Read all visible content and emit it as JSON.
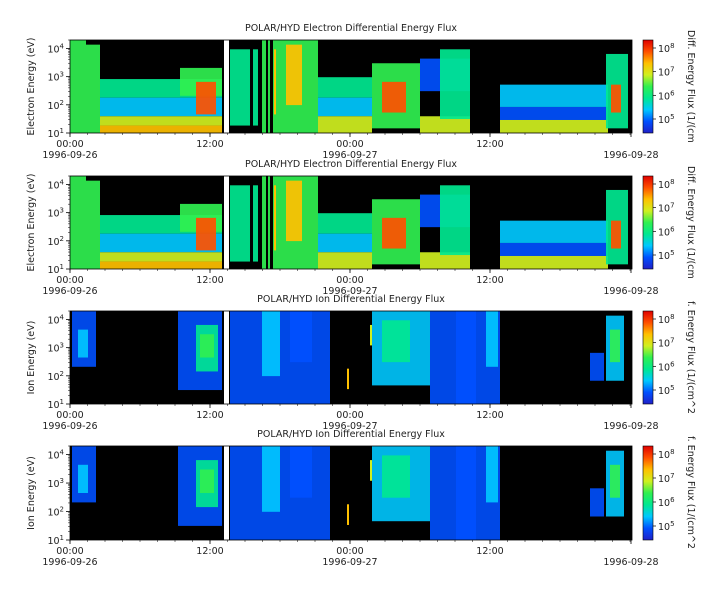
{
  "colors": {
    "background": "#000000",
    "colormap": [
      "#2020c8",
      "#0050ff",
      "#00c8ff",
      "#00e890",
      "#30f050",
      "#d0f020",
      "#ffc000",
      "#ff5000",
      "#e00000"
    ]
  },
  "chart_data": [
    {
      "type": "heatmap",
      "title": "POLAR/HYD  Electron Differential Energy Flux",
      "ylabel": "Electron Energy (eV)",
      "yscale": "log",
      "ylim": [
        10,
        20000
      ],
      "yticks": [
        "10",
        "10",
        "10",
        "10"
      ],
      "yticks_exp": [
        "1",
        "2",
        "3",
        "4"
      ],
      "xticks": [
        "00:00",
        "12:00",
        "00:00",
        "12:00",
        ""
      ],
      "xdates": [
        "1996-09-26",
        "",
        "1996-09-27",
        "",
        "1996-09-28"
      ],
      "colorbar": {
        "label": "Diff. Energy Flux (1/(cm",
        "ticks": [
          "10",
          "10",
          "10",
          "10"
        ],
        "ticks_exp": [
          "5",
          "6",
          "7",
          "8"
        ]
      }
    },
    {
      "type": "heatmap",
      "title": "POLAR/HYD  Electron Differential Energy Flux",
      "ylabel": "Electron Energy (eV)",
      "yscale": "log",
      "ylim": [
        10,
        20000
      ],
      "yticks": [
        "10",
        "10",
        "10",
        "10"
      ],
      "yticks_exp": [
        "1",
        "2",
        "3",
        "4"
      ],
      "xticks": [
        "00:00",
        "12:00",
        "00:00",
        "12:00",
        ""
      ],
      "xdates": [
        "1996-09-26",
        "",
        "1996-09-27",
        "",
        "1996-09-28"
      ],
      "colorbar": {
        "label": "Diff. Energy Flux (1/(cm",
        "ticks": [
          "10",
          "10",
          "10",
          "10"
        ],
        "ticks_exp": [
          "5",
          "6",
          "7",
          "8"
        ]
      }
    },
    {
      "type": "heatmap",
      "title": "POLAR/HYD  Ion Differential Energy Flux",
      "ylabel": "Ion Energy (eV)",
      "yscale": "log",
      "ylim": [
        10,
        20000
      ],
      "yticks": [
        "10",
        "10",
        "10",
        "10"
      ],
      "yticks_exp": [
        "1",
        "2",
        "3",
        "4"
      ],
      "xticks": [
        "00:00",
        "12:00",
        "00:00",
        "12:00",
        ""
      ],
      "xdates": [
        "1996-09-26",
        "",
        "1996-09-27",
        "",
        "1996-09-28"
      ],
      "colorbar": {
        "label": "f. Energy Flux (1/(cm^2",
        "ticks": [
          "10",
          "10",
          "10",
          "10"
        ],
        "ticks_exp": [
          "5",
          "6",
          "7",
          "8"
        ]
      }
    },
    {
      "type": "heatmap",
      "title": "POLAR/HYD  Ion Differential Energy Flux",
      "ylabel": "Ion Energy (eV)",
      "yscale": "log",
      "ylim": [
        10,
        20000
      ],
      "yticks": [
        "10",
        "10",
        "10",
        "10"
      ],
      "yticks_exp": [
        "1",
        "2",
        "3",
        "4"
      ],
      "xticks": [
        "00:00",
        "12:00",
        "00:00",
        "12:00",
        ""
      ],
      "xdates": [
        "1996-09-26",
        "",
        "1996-09-27",
        "",
        "1996-09-28"
      ],
      "colorbar": {
        "label": "f. Energy Flux (1/(cm^2",
        "ticks": [
          "10",
          "10",
          "10",
          "10"
        ],
        "ticks_exp": [
          "5",
          "6",
          "7",
          "8"
        ]
      }
    }
  ]
}
